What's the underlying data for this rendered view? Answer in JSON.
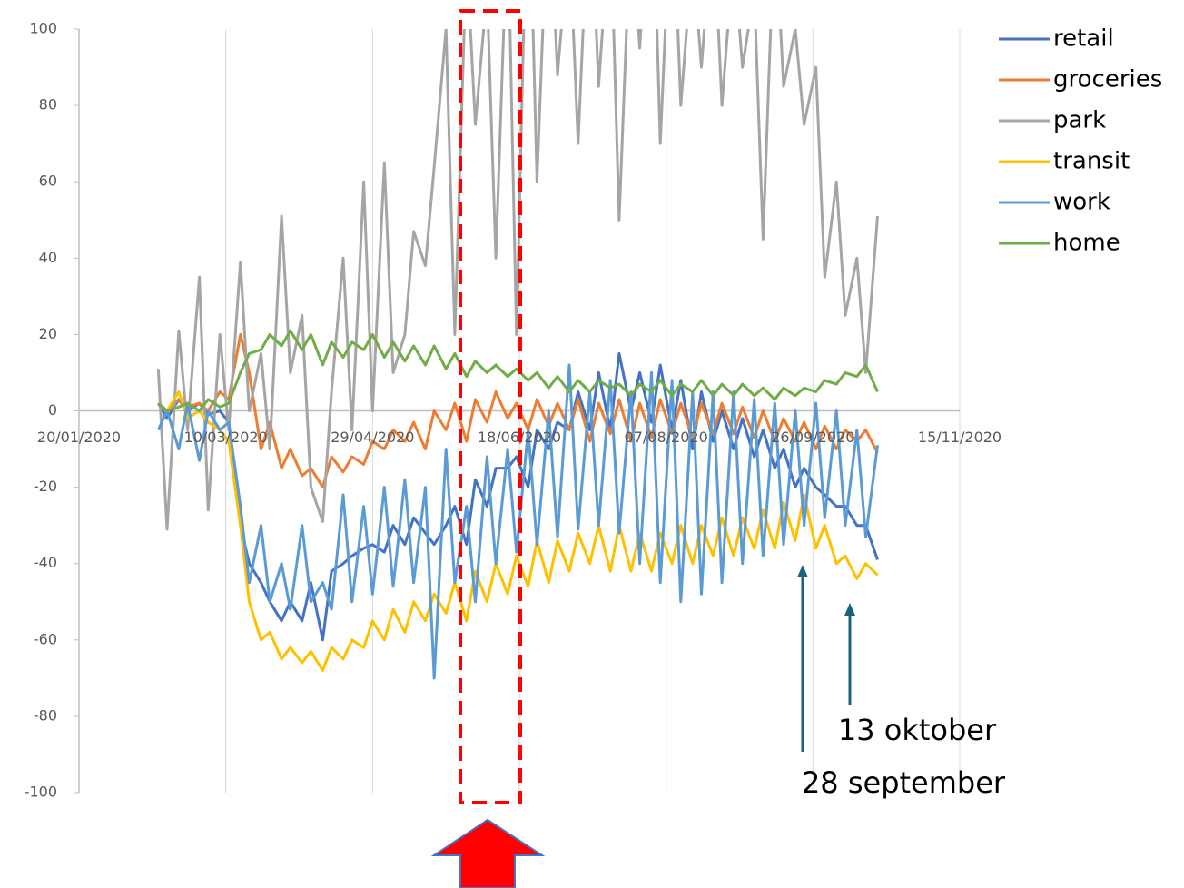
{
  "chart_data": {
    "type": "line",
    "x": [
      "16/02/2020",
      "19/02/2020",
      "23/02/2020",
      "26/02/2020",
      "01/03/2020",
      "04/03/2020",
      "08/03/2020",
      "11/03/2020",
      "15/03/2020",
      "18/03/2020",
      "22/03/2020",
      "25/03/2020",
      "29/03/2020",
      "01/04/2020",
      "05/04/2020",
      "08/04/2020",
      "12/04/2020",
      "15/04/2020",
      "19/04/2020",
      "22/04/2020",
      "26/04/2020",
      "29/04/2020",
      "03/05/2020",
      "06/05/2020",
      "10/05/2020",
      "13/05/2020",
      "17/05/2020",
      "20/05/2020",
      "24/05/2020",
      "27/05/2020",
      "31/05/2020",
      "03/06/2020",
      "07/06/2020",
      "10/06/2020",
      "14/06/2020",
      "17/06/2020",
      "21/06/2020",
      "24/06/2020",
      "28/06/2020",
      "01/07/2020",
      "05/07/2020",
      "08/07/2020",
      "12/07/2020",
      "15/07/2020",
      "19/07/2020",
      "22/07/2020",
      "26/07/2020",
      "29/07/2020",
      "02/08/2020",
      "05/08/2020",
      "09/08/2020",
      "12/08/2020",
      "16/08/2020",
      "19/08/2020",
      "23/08/2020",
      "26/08/2020",
      "30/08/2020",
      "02/09/2020",
      "06/09/2020",
      "09/09/2020",
      "13/09/2020",
      "16/09/2020",
      "20/09/2020",
      "23/09/2020",
      "27/09/2020",
      "30/09/2020",
      "04/10/2020",
      "07/10/2020",
      "11/10/2020",
      "14/10/2020",
      "18/10/2020"
    ],
    "series": [
      {
        "name": "retail",
        "color": "#4472c4",
        "values": [
          2,
          -2,
          3,
          0,
          2,
          -1,
          0,
          -3,
          -30,
          -40,
          -45,
          -50,
          -55,
          -50,
          -55,
          -45,
          -60,
          -42,
          -40,
          -38,
          -36,
          -35,
          -37,
          -30,
          -35,
          -28,
          -32,
          -35,
          -30,
          -25,
          -35,
          -18,
          -25,
          -15,
          -15,
          -12,
          -20,
          -5,
          -10,
          -3,
          -5,
          5,
          -5,
          10,
          -5,
          15,
          0,
          10,
          -3,
          12,
          -5,
          8,
          -10,
          5,
          -8,
          0,
          -10,
          -2,
          -12,
          -5,
          -15,
          -10,
          -20,
          -15,
          -20,
          -22,
          -25,
          -25,
          -30,
          -30,
          -39
        ]
      },
      {
        "name": "groceries",
        "color": "#ed7d31",
        "values": [
          2,
          0,
          3,
          1,
          2,
          0,
          5,
          3,
          20,
          10,
          -10,
          -3,
          -15,
          -10,
          -17,
          -15,
          -20,
          -12,
          -16,
          -12,
          -14,
          -8,
          -10,
          -5,
          -8,
          -3,
          -10,
          0,
          -5,
          2,
          -8,
          3,
          -3,
          5,
          -2,
          2,
          -5,
          3,
          -4,
          2,
          -5,
          3,
          -8,
          2,
          -6,
          3,
          -8,
          2,
          -7,
          3,
          -6,
          2,
          -7,
          2,
          -6,
          2,
          -6,
          1,
          -7,
          0,
          -8,
          -2,
          -8,
          -3,
          -10,
          -4,
          -10,
          -5,
          -8,
          -5,
          -11
        ]
      },
      {
        "name": "park",
        "color": "#a5a5a5",
        "values": [
          11,
          -31,
          21,
          -5,
          35,
          -26,
          20,
          -5,
          39,
          0,
          15,
          -10,
          51,
          10,
          25,
          -20,
          -29,
          5,
          40,
          -5,
          60,
          0,
          65,
          10,
          20,
          47,
          38,
          64,
          100,
          20,
          120,
          75,
          110,
          40,
          130,
          20,
          150,
          60,
          140,
          88,
          125,
          70,
          140,
          85,
          130,
          50,
          130,
          95,
          150,
          70,
          140,
          80,
          120,
          90,
          130,
          80,
          120,
          90,
          110,
          45,
          130,
          85,
          100,
          75,
          90,
          35,
          60,
          25,
          40,
          10,
          51
        ]
      },
      {
        "name": "transit",
        "color": "#ffc000",
        "values": [
          2,
          0,
          5,
          -2,
          0,
          -3,
          -5,
          -8,
          -30,
          -50,
          -60,
          -58,
          -65,
          -62,
          -66,
          -63,
          -68,
          -62,
          -65,
          -60,
          -62,
          -55,
          -60,
          -52,
          -58,
          -50,
          -55,
          -48,
          -53,
          -45,
          -55,
          -42,
          -50,
          -40,
          -48,
          -38,
          -46,
          -34,
          -45,
          -34,
          -42,
          -32,
          -40,
          -30,
          -42,
          -30,
          -42,
          -32,
          -42,
          -32,
          -40,
          -30,
          -40,
          -30,
          -38,
          -28,
          -38,
          -28,
          -36,
          -26,
          -36,
          -24,
          -34,
          -22,
          -36,
          -30,
          -40,
          -38,
          -44,
          -40,
          -43
        ]
      },
      {
        "name": "work",
        "color": "#5b9bd5",
        "values": [
          -5,
          0,
          -10,
          2,
          -13,
          0,
          -5,
          -3,
          -25,
          -45,
          -30,
          -50,
          -40,
          -52,
          -30,
          -50,
          -45,
          -52,
          -22,
          -50,
          -25,
          -48,
          -20,
          -46,
          -18,
          -45,
          -20,
          -70,
          -10,
          -45,
          -25,
          -50,
          -12,
          -40,
          -10,
          -37,
          -5,
          -35,
          0,
          -33,
          12,
          -31,
          5,
          -30,
          8,
          -32,
          5,
          -40,
          10,
          -45,
          8,
          -50,
          5,
          -48,
          5,
          -45,
          5,
          -40,
          3,
          -38,
          2,
          -35,
          0,
          -30,
          2,
          -28,
          0,
          -30,
          -5,
          -33,
          -9
        ]
      },
      {
        "name": "home",
        "color": "#70ad47",
        "values": [
          2,
          0,
          1,
          2,
          0,
          3,
          1,
          2,
          10,
          15,
          16,
          20,
          17,
          21,
          16,
          20,
          12,
          18,
          14,
          18,
          16,
          20,
          14,
          18,
          13,
          17,
          12,
          17,
          11,
          15,
          9,
          13,
          10,
          12,
          9,
          11,
          8,
          10,
          6,
          9,
          5,
          8,
          5,
          8,
          6,
          7,
          4,
          7,
          5,
          8,
          4,
          7,
          5,
          8,
          4,
          7,
          4,
          7,
          4,
          6,
          3,
          6,
          4,
          6,
          5,
          8,
          7,
          10,
          9,
          12,
          5
        ]
      }
    ],
    "xlim": [
      "20/01/2020",
      "15/11/2020"
    ],
    "xticks": [
      "20/01/2020",
      "10/03/2020",
      "29/04/2020",
      "18/06/2020",
      "07/08/2020",
      "26/09/2020",
      "15/11/2020"
    ],
    "ylim": [
      -100,
      100
    ],
    "yticks": [
      -100,
      -80,
      -60,
      -40,
      -20,
      0,
      20,
      40,
      60,
      80,
      100
    ],
    "xgrid": true,
    "legend": "right",
    "annotations": [
      "13 oktober",
      "28 september"
    ]
  }
}
